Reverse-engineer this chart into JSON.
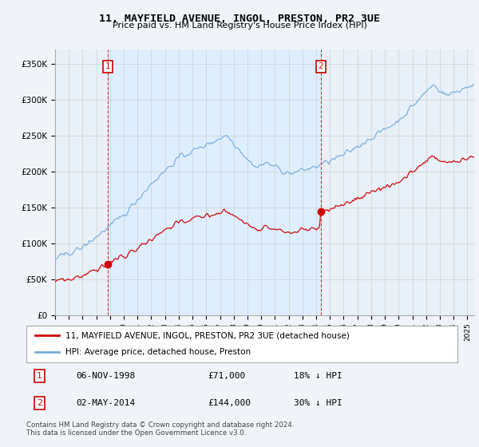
{
  "title": "11, MAYFIELD AVENUE, INGOL, PRESTON, PR2 3UE",
  "subtitle": "Price paid vs. HM Land Registry's House Price Index (HPI)",
  "legend_line1": "11, MAYFIELD AVENUE, INGOL, PRESTON, PR2 3UE (detached house)",
  "legend_line2": "HPI: Average price, detached house, Preston",
  "footnote": "Contains HM Land Registry data © Crown copyright and database right 2024.\nThis data is licensed under the Open Government Licence v3.0.",
  "table": [
    {
      "num": "1",
      "date": "06-NOV-1998",
      "price": "£71,000",
      "hpi": "18% ↓ HPI"
    },
    {
      "num": "2",
      "date": "02-MAY-2014",
      "price": "£144,000",
      "hpi": "30% ↓ HPI"
    }
  ],
  "sale1_x": 1998.85,
  "sale1_y": 71000,
  "sale2_x": 2014.33,
  "sale2_y": 144000,
  "vline1_x": 1998.85,
  "vline2_x": 2014.33,
  "house_color": "#cc0000",
  "hpi_color": "#7aaddc",
  "shade_color": "#ddeeff",
  "ylim": [
    0,
    370000
  ],
  "xlim_start": 1995.0,
  "xlim_end": 2025.5,
  "background_color": "#f0f4f8",
  "plot_bg_color": "#e8f0f8",
  "grid_color": "#cccccc",
  "fig_width": 6.0,
  "fig_height": 5.6
}
